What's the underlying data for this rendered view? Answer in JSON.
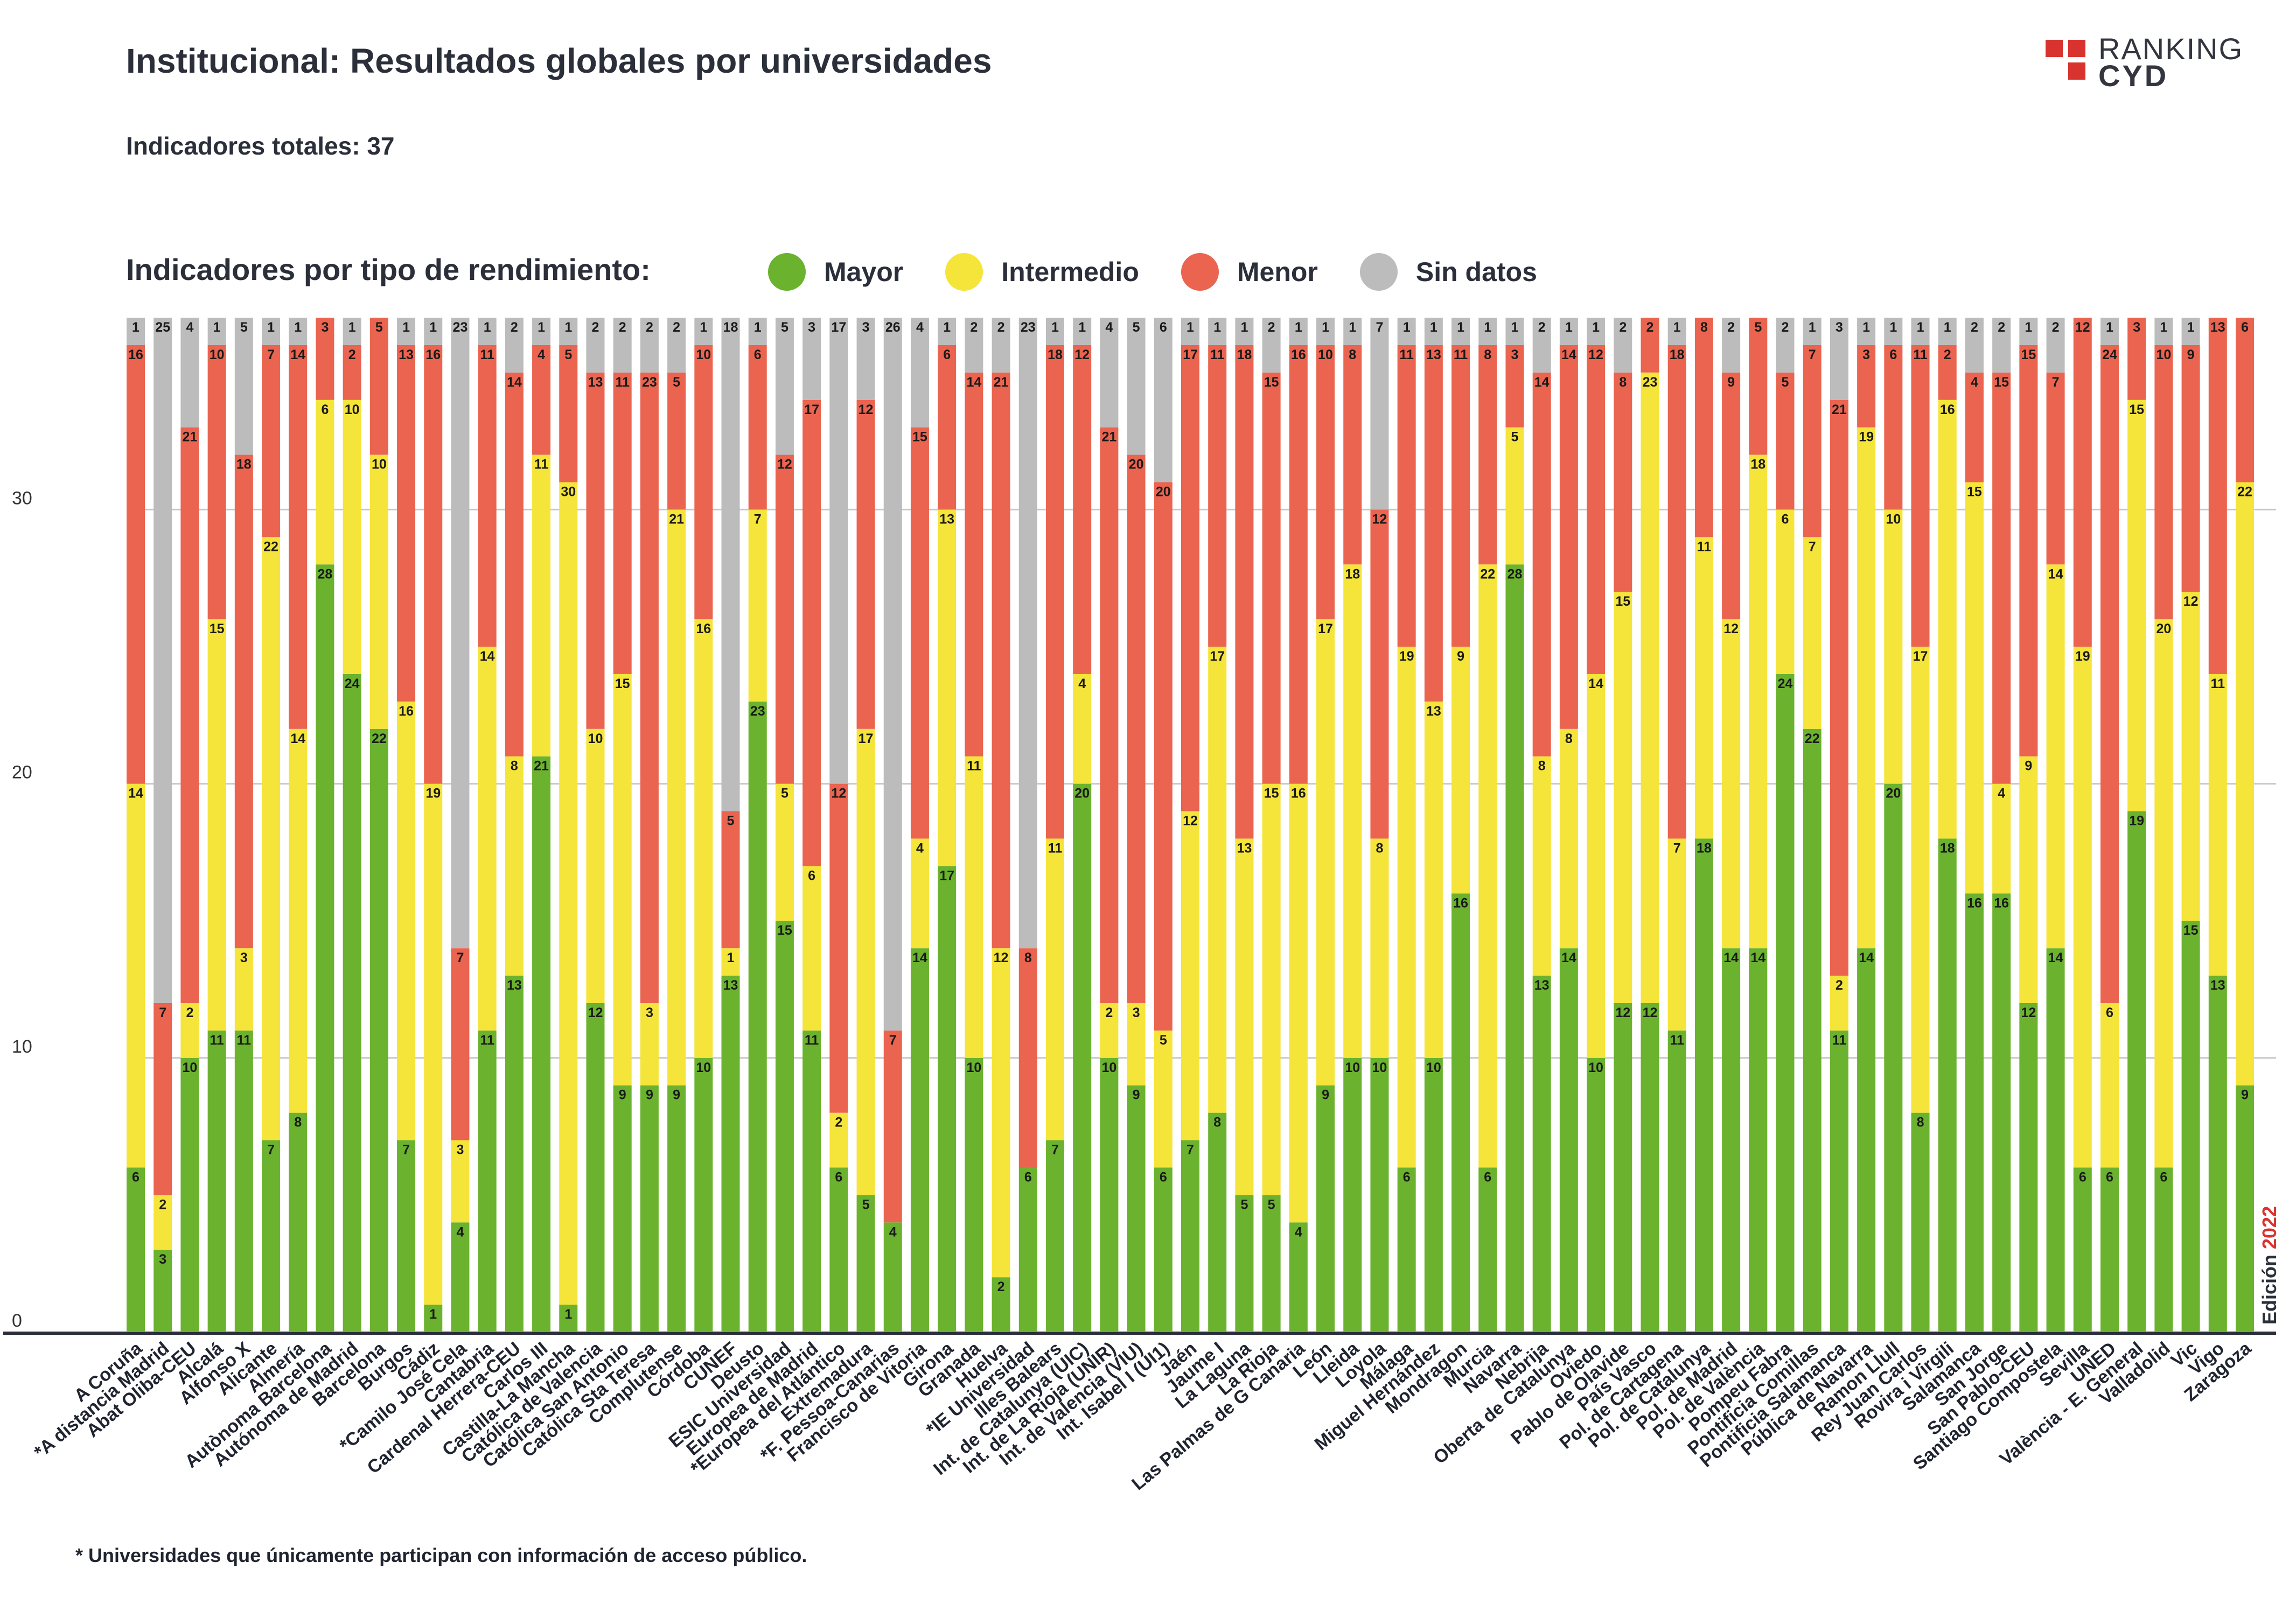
{
  "header": {
    "title": "Institucional: Resultados globales por universidades",
    "subtitle": "Indicadores totales: 37",
    "legend_title": "Indicadores por tipo de rendimiento:"
  },
  "logo": {
    "line1": "RANKING",
    "line2": "CYD",
    "color": "#d9332f"
  },
  "legend": [
    {
      "label": "Mayor",
      "color": "#6bb22e"
    },
    {
      "label": "Intermedio",
      "color": "#f5e43a"
    },
    {
      "label": "Menor",
      "color": "#ea6450"
    },
    {
      "label": "Sin datos",
      "color": "#bcbcbc"
    }
  ],
  "edition": {
    "prefix": "Edición ",
    "year": "2022",
    "year_color": "#d9332f"
  },
  "footnote": "* Universidades que únicamente participan con información de acceso público.",
  "chart_data": {
    "type": "bar",
    "stacked": true,
    "title": "Institucional: Resultados globales por universidades",
    "ylim": [
      0,
      37
    ],
    "yticks": [
      0,
      10,
      20,
      30
    ],
    "grid": true,
    "legend_position": "top",
    "categories": [
      "A Coruña",
      "*A distancia Madrid",
      "Abat Oliba-CEU",
      "Alcalá",
      "Alfonso X",
      "Alicante",
      "Almería",
      "Autònoma Barcelona",
      "Autónoma de Madrid",
      "Barcelona",
      "Burgos",
      "Cádiz",
      "*Camilo José Cela",
      "Cantabria",
      "Cardenal Herrera-CEU",
      "Carlos III",
      "Castilla-La Mancha",
      "Católica de Valencia",
      "Católica San Antonio",
      "Católica Sta Teresa",
      "Complutense",
      "Córdoba",
      "CUNEF",
      "Deusto",
      "ESIC Universidad",
      "Europea de Madrid",
      "*Europea del Atlántico",
      "Extremadura",
      "*F. Pessoa-Canarias",
      "Francisco de Vitoria",
      "Girona",
      "Granada",
      "Huelva",
      "*IE Universidad",
      "Illes Balears",
      "Int. de Catalunya (UIC)",
      "Int. de La Rioja (UNIR)",
      "Int. de Valencia (VIU)",
      "Int. Isabel I (UI1)",
      "Jaén",
      "Jaume I",
      "La Laguna",
      "La Rioja",
      "Las Palmas de G Canaria",
      "León",
      "Lleida",
      "Loyola",
      "Málaga",
      "Miguel Hernández",
      "Mondragon",
      "Murcia",
      "Navarra",
      "Nebrija",
      "Oberta de Catalunya",
      "Oviedo",
      "Pablo de Olavide",
      "País Vasco",
      "Pol. de Cartagena",
      "Pol. de Catalunya",
      "Pol. de Madrid",
      "Pol. de València",
      "Pompeu Fabra",
      "Pontificia Comillas",
      "Pontificia Salamanca",
      "Pública de Navarra",
      "Ramon Llull",
      "Rey Juan Carlos",
      "Rovira i Virgili",
      "Salamanca",
      "San Jorge",
      "San Pablo-CEU",
      "Santiago Compostela",
      "Sevilla",
      "UNED",
      "València - E. General",
      "Valladolid",
      "Vic",
      "Vigo",
      "Zaragoza"
    ],
    "series": [
      {
        "name": "Mayor",
        "color": "#6bb22e",
        "values": [
          6,
          3,
          10,
          11,
          11,
          7,
          8,
          28,
          24,
          22,
          7,
          1,
          4,
          11,
          13,
          21,
          1,
          12,
          9,
          9,
          9,
          10,
          13,
          23,
          15,
          11,
          6,
          5,
          4,
          14,
          17,
          10,
          2,
          6,
          7,
          20,
          10,
          9,
          6,
          7,
          8,
          5,
          5,
          4,
          9,
          10,
          10,
          6,
          10,
          16,
          6,
          28,
          13,
          14,
          10,
          12,
          12,
          11,
          18,
          14,
          14,
          24,
          22,
          11,
          14,
          20,
          8,
          18,
          16,
          16,
          12,
          14,
          6,
          6,
          19,
          6,
          15,
          13,
          9
        ]
      },
      {
        "name": "Intermedio",
        "color": "#f5e43a",
        "values": [
          14,
          2,
          2,
          15,
          3,
          22,
          14,
          6,
          10,
          10,
          16,
          19,
          3,
          14,
          8,
          11,
          30,
          10,
          15,
          3,
          21,
          16,
          1,
          7,
          5,
          6,
          2,
          17,
          0,
          4,
          13,
          11,
          12,
          0,
          11,
          4,
          2,
          3,
          5,
          12,
          17,
          13,
          15,
          16,
          17,
          18,
          8,
          19,
          13,
          9,
          22,
          5,
          8,
          8,
          14,
          15,
          23,
          7,
          11,
          12,
          18,
          6,
          7,
          2,
          19,
          10,
          17,
          16,
          15,
          4,
          9,
          14,
          19,
          6,
          15,
          20,
          12,
          11,
          22
        ]
      },
      {
        "name": "Menor",
        "color": "#ea6450",
        "values": [
          16,
          7,
          21,
          10,
          18,
          7,
          14,
          3,
          2,
          5,
          13,
          16,
          7,
          11,
          14,
          4,
          5,
          13,
          11,
          23,
          5,
          10,
          5,
          6,
          12,
          17,
          12,
          12,
          7,
          15,
          6,
          14,
          21,
          8,
          18,
          12,
          21,
          20,
          20,
          17,
          11,
          18,
          15,
          16,
          10,
          8,
          12,
          11,
          13,
          11,
          8,
          3,
          14,
          14,
          12,
          8,
          2,
          18,
          8,
          9,
          5,
          5,
          7,
          21,
          3,
          6,
          11,
          2,
          4,
          15,
          15,
          7,
          12,
          24,
          3,
          10,
          9,
          13,
          6
        ]
      },
      {
        "name": "Sin datos",
        "color": "#bcbcbc",
        "values": [
          1,
          25,
          4,
          1,
          5,
          1,
          1,
          0,
          1,
          0,
          1,
          1,
          23,
          1,
          2,
          1,
          1,
          2,
          2,
          2,
          2,
          1,
          18,
          1,
          5,
          3,
          17,
          3,
          26,
          4,
          1,
          2,
          2,
          23,
          1,
          1,
          4,
          5,
          6,
          1,
          1,
          1,
          2,
          1,
          1,
          1,
          7,
          1,
          1,
          1,
          1,
          1,
          2,
          1,
          1,
          2,
          0,
          1,
          0,
          2,
          0,
          2,
          1,
          3,
          1,
          1,
          1,
          1,
          2,
          2,
          1,
          2,
          0,
          1,
          0,
          1,
          1,
          0,
          0
        ]
      }
    ]
  }
}
